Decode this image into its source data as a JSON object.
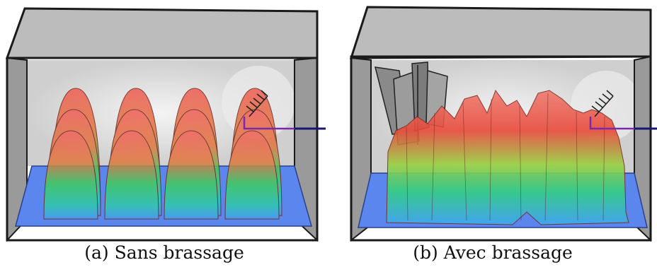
{
  "panels": [
    {
      "caption": "(a) Sans brassage"
    },
    {
      "caption": "(b) Avec brassage"
    }
  ],
  "colors": {
    "cavity_wall": "#d6d6d6",
    "cavity_top": "#bdbdbd",
    "cavity_frame": "#1a1a1a",
    "floor": "#5b86ee",
    "field_high": "#e8524a",
    "field_mid": "#38d06a",
    "field_low": "#3fb0e8",
    "antenna_cable": "#1b1570",
    "stirrer": "#8a8a8a"
  },
  "icons": {
    "antenna": "antenna-icon",
    "stirrer": "stirrer-icon"
  }
}
